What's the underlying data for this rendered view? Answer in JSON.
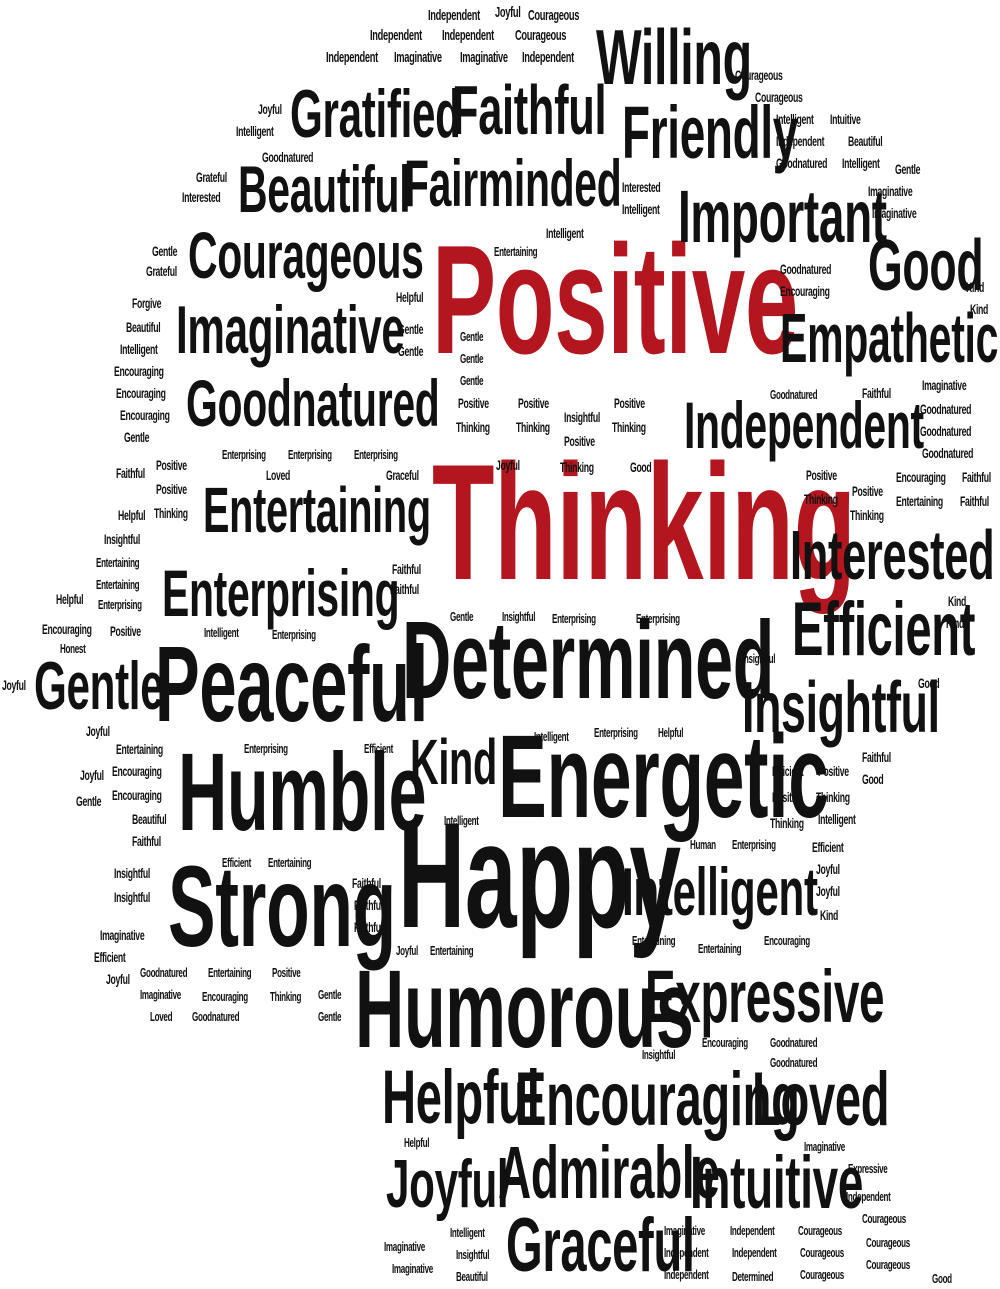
{
  "colors": {
    "background": "#ffffff",
    "text": "#111111",
    "accent": "#b3161e"
  },
  "words": [
    {
      "id": "w1",
      "text": "Positive",
      "accent": true
    },
    {
      "id": "w2",
      "text": "Thinking",
      "accent": true
    },
    {
      "id": "w3",
      "text": "Happy"
    },
    {
      "id": "w4",
      "text": "Determined"
    },
    {
      "id": "w5",
      "text": "Energetic"
    },
    {
      "id": "w6",
      "text": "Peaceful"
    },
    {
      "id": "w7",
      "text": "Humorous"
    },
    {
      "id": "w8",
      "text": "Humble"
    },
    {
      "id": "w9",
      "text": "Strong"
    },
    {
      "id": "w10",
      "text": "Willing"
    },
    {
      "id": "w11",
      "text": "Friendly"
    },
    {
      "id": "w12",
      "text": "Important"
    },
    {
      "id": "w13",
      "text": "Good"
    },
    {
      "id": "w14",
      "text": "Empathetic"
    },
    {
      "id": "w15",
      "text": "Independent"
    },
    {
      "id": "w16",
      "text": "Interested"
    },
    {
      "id": "w17",
      "text": "Efficient"
    },
    {
      "id": "w18",
      "text": "Insightful"
    },
    {
      "id": "w19",
      "text": "Intelligent"
    },
    {
      "id": "w20",
      "text": "Expressive"
    },
    {
      "id": "w21",
      "text": "Gratified"
    },
    {
      "id": "w22",
      "text": "Faithful"
    },
    {
      "id": "w23",
      "text": "Beautiful"
    },
    {
      "id": "w24",
      "text": "Fairminded"
    },
    {
      "id": "w25",
      "text": "Courageous"
    },
    {
      "id": "w26",
      "text": "Imaginative"
    },
    {
      "id": "w27",
      "text": "Goodnatured"
    },
    {
      "id": "w28",
      "text": "Entertaining"
    },
    {
      "id": "w29",
      "text": "Enterprising"
    },
    {
      "id": "w30",
      "text": "Gentle"
    },
    {
      "id": "w31",
      "text": "Kind"
    },
    {
      "id": "w32",
      "text": "Helpful"
    },
    {
      "id": "w33",
      "text": "Encouraging"
    },
    {
      "id": "w34",
      "text": "Loved"
    },
    {
      "id": "w35",
      "text": "Joyful"
    },
    {
      "id": "w36",
      "text": "Admirable"
    },
    {
      "id": "w37",
      "text": "Intuitive"
    },
    {
      "id": "w38",
      "text": "Graceful"
    },
    {
      "id": "s1",
      "text": "Independent"
    },
    {
      "id": "s2",
      "text": "Joyful"
    },
    {
      "id": "s3",
      "text": "Courageous"
    },
    {
      "id": "s4",
      "text": "Independent"
    },
    {
      "id": "s5",
      "text": "Independent"
    },
    {
      "id": "s6",
      "text": "Courageous"
    },
    {
      "id": "s7",
      "text": "Independent"
    },
    {
      "id": "s8",
      "text": "Imaginative"
    },
    {
      "id": "s9",
      "text": "Imaginative"
    },
    {
      "id": "s10",
      "text": "Independent"
    },
    {
      "id": "s11",
      "text": "Courageous"
    },
    {
      "id": "s12",
      "text": "Courageous"
    },
    {
      "id": "s13",
      "text": "Joyful"
    },
    {
      "id": "s14",
      "text": "Intelligent"
    },
    {
      "id": "s15",
      "text": "Intelligent"
    },
    {
      "id": "s16",
      "text": "Intuitive"
    },
    {
      "id": "s17",
      "text": "Independent"
    },
    {
      "id": "s18",
      "text": "Beautiful"
    },
    {
      "id": "s19",
      "text": "Goodnatured"
    },
    {
      "id": "s20",
      "text": "Intelligent"
    },
    {
      "id": "s21",
      "text": "Gentle"
    },
    {
      "id": "s22",
      "text": "Goodnatured"
    },
    {
      "id": "s23",
      "text": "Grateful"
    },
    {
      "id": "s24",
      "text": "Interested"
    },
    {
      "id": "s25",
      "text": "Interested"
    },
    {
      "id": "s26",
      "text": "Intelligent"
    },
    {
      "id": "s27",
      "text": "Imaginative"
    },
    {
      "id": "s28",
      "text": "Imaginative"
    },
    {
      "id": "s29",
      "text": "Intelligent"
    },
    {
      "id": "s30",
      "text": "Entertaining"
    },
    {
      "id": "s31",
      "text": "Gentle"
    },
    {
      "id": "s32",
      "text": "Grateful"
    },
    {
      "id": "s33",
      "text": "Goodnatured"
    },
    {
      "id": "s34",
      "text": "Encouraging"
    },
    {
      "id": "s35",
      "text": "Kind"
    },
    {
      "id": "s36",
      "text": "Kind"
    },
    {
      "id": "s37",
      "text": "Forgive"
    },
    {
      "id": "s38",
      "text": "Helpful"
    },
    {
      "id": "s39",
      "text": "Beautiful"
    },
    {
      "id": "s40",
      "text": "Gentle"
    },
    {
      "id": "s41",
      "text": "Intelligent"
    },
    {
      "id": "s42",
      "text": "Gentle"
    },
    {
      "id": "s43",
      "text": "Gentle"
    },
    {
      "id": "s44",
      "text": "Gentle"
    },
    {
      "id": "s45",
      "text": "Encouraging"
    },
    {
      "id": "s46",
      "text": "Encouraging"
    },
    {
      "id": "s47",
      "text": "Gentle"
    },
    {
      "id": "s48",
      "text": "Encouraging"
    },
    {
      "id": "s49",
      "text": "Gentle"
    },
    {
      "id": "s50",
      "text": "Positive"
    },
    {
      "id": "s51",
      "text": "Positive"
    },
    {
      "id": "s52",
      "text": "Positive"
    },
    {
      "id": "s53",
      "text": "Insightful"
    },
    {
      "id": "s54",
      "text": "Thinking"
    },
    {
      "id": "s55",
      "text": "Thinking"
    },
    {
      "id": "s56",
      "text": "Thinking"
    },
    {
      "id": "s57",
      "text": "Positive"
    },
    {
      "id": "s58",
      "text": "Entertaining"
    },
    {
      "id": "s59",
      "text": "Goodnatured"
    },
    {
      "id": "s60",
      "text": "Faithful"
    },
    {
      "id": "s61",
      "text": "Imaginative"
    },
    {
      "id": "s62",
      "text": "Goodnatured"
    },
    {
      "id": "s63",
      "text": "Goodnatured"
    },
    {
      "id": "s64",
      "text": "Goodnatured"
    },
    {
      "id": "s65",
      "text": "Enterprising"
    },
    {
      "id": "s66",
      "text": "Enterprising"
    },
    {
      "id": "s67",
      "text": "Enterprising"
    },
    {
      "id": "s68",
      "text": "Faithful"
    },
    {
      "id": "s69",
      "text": "Positive"
    },
    {
      "id": "s70",
      "text": "Loved"
    },
    {
      "id": "s71",
      "text": "Graceful"
    },
    {
      "id": "s72",
      "text": "Joyful"
    },
    {
      "id": "s73",
      "text": "Thinking"
    },
    {
      "id": "s74",
      "text": "Good"
    },
    {
      "id": "s75",
      "text": "Helpful"
    },
    {
      "id": "s76",
      "text": "Positive"
    },
    {
      "id": "s77",
      "text": "Positive"
    },
    {
      "id": "s78",
      "text": "Encouraging"
    },
    {
      "id": "s79",
      "text": "Faithful"
    },
    {
      "id": "s80",
      "text": "Thinking"
    },
    {
      "id": "s81",
      "text": "Positive"
    },
    {
      "id": "s82",
      "text": "Entertaining"
    },
    {
      "id": "s83",
      "text": "Faithful"
    },
    {
      "id": "s84",
      "text": "Insightful"
    },
    {
      "id": "s85",
      "text": "Thinking"
    },
    {
      "id": "s86",
      "text": "Thinking"
    },
    {
      "id": "s87",
      "text": "Entertaining"
    },
    {
      "id": "s88",
      "text": "Entertaining"
    },
    {
      "id": "s89",
      "text": "Faithful"
    },
    {
      "id": "s90",
      "text": "Enterprising"
    },
    {
      "id": "s91",
      "text": "Faithful"
    },
    {
      "id": "s92",
      "text": "Helpful"
    },
    {
      "id": "s93",
      "text": "Gentle"
    },
    {
      "id": "s94",
      "text": "Insightful"
    },
    {
      "id": "s95",
      "text": "Enterprising"
    },
    {
      "id": "s96",
      "text": "Enterprising"
    },
    {
      "id": "s97",
      "text": "Kind"
    },
    {
      "id": "s98",
      "text": "Encouraging"
    },
    {
      "id": "s99",
      "text": "Positive"
    },
    {
      "id": "s100",
      "text": "Intelligent"
    },
    {
      "id": "s101",
      "text": "Enterprising"
    },
    {
      "id": "s102",
      "text": "Kind"
    },
    {
      "id": "s103",
      "text": "Honest"
    },
    {
      "id": "s104",
      "text": "Joyful"
    },
    {
      "id": "s105",
      "text": "Insightful"
    },
    {
      "id": "s106",
      "text": "Good"
    },
    {
      "id": "s107",
      "text": "Joyful"
    },
    {
      "id": "s108",
      "text": "Intelligent"
    },
    {
      "id": "s109",
      "text": "Enterprising"
    },
    {
      "id": "s110",
      "text": "Helpful"
    },
    {
      "id": "s111",
      "text": "Entertaining"
    },
    {
      "id": "s112",
      "text": "Enterprising"
    },
    {
      "id": "s113",
      "text": "Efficient"
    },
    {
      "id": "s114",
      "text": "Faithful"
    },
    {
      "id": "s115",
      "text": "Joyful"
    },
    {
      "id": "s116",
      "text": "Encouraging"
    },
    {
      "id": "s117",
      "text": "Efficient"
    },
    {
      "id": "s118",
      "text": "Positive"
    },
    {
      "id": "s119",
      "text": "Good"
    },
    {
      "id": "s120",
      "text": "Gentle"
    },
    {
      "id": "s121",
      "text": "Encouraging"
    },
    {
      "id": "s122",
      "text": "Positive"
    },
    {
      "id": "s123",
      "text": "Thinking"
    },
    {
      "id": "s124",
      "text": "Beautiful"
    },
    {
      "id": "s125",
      "text": "Intelligent"
    },
    {
      "id": "s126",
      "text": "Thinking"
    },
    {
      "id": "s127",
      "text": "Intelligent"
    },
    {
      "id": "s128",
      "text": "Faithful"
    },
    {
      "id": "s129",
      "text": "Human"
    },
    {
      "id": "s130",
      "text": "Enterprising"
    },
    {
      "id": "s131",
      "text": "Efficient"
    },
    {
      "id": "s132",
      "text": "Efficient"
    },
    {
      "id": "s133",
      "text": "Entertaining"
    },
    {
      "id": "s134",
      "text": "Joyful"
    },
    {
      "id": "s135",
      "text": "Insightful"
    },
    {
      "id": "s136",
      "text": "Faithful"
    },
    {
      "id": "s137",
      "text": "Joyful"
    },
    {
      "id": "s138",
      "text": "Insightful"
    },
    {
      "id": "s139",
      "text": "Faithful"
    },
    {
      "id": "s140",
      "text": "Kind"
    },
    {
      "id": "s141",
      "text": "Faithful"
    },
    {
      "id": "s142",
      "text": "Imaginative"
    },
    {
      "id": "s143",
      "text": "Entertaining"
    },
    {
      "id": "s144",
      "text": "Entertaining"
    },
    {
      "id": "s145",
      "text": "Encouraging"
    },
    {
      "id": "s146",
      "text": "Efficient"
    },
    {
      "id": "s147",
      "text": "Joyful"
    },
    {
      "id": "s148",
      "text": "Entertaining"
    },
    {
      "id": "s149",
      "text": "Joyful"
    },
    {
      "id": "s150",
      "text": "Goodnatured"
    },
    {
      "id": "s151",
      "text": "Entertaining"
    },
    {
      "id": "s152",
      "text": "Positive"
    },
    {
      "id": "s153",
      "text": "Imaginative"
    },
    {
      "id": "s154",
      "text": "Encouraging"
    },
    {
      "id": "s155",
      "text": "Thinking"
    },
    {
      "id": "s156",
      "text": "Gentle"
    },
    {
      "id": "s157",
      "text": "Loved"
    },
    {
      "id": "s158",
      "text": "Goodnatured"
    },
    {
      "id": "s159",
      "text": "Gentle"
    },
    {
      "id": "s160",
      "text": "Insightful"
    },
    {
      "id": "s161",
      "text": "Encouraging"
    },
    {
      "id": "s162",
      "text": "Goodnatured"
    },
    {
      "id": "s163",
      "text": "Goodnatured"
    },
    {
      "id": "s164",
      "text": "Helpful"
    },
    {
      "id": "s165",
      "text": "Imaginative"
    },
    {
      "id": "s166",
      "text": "Expressive"
    },
    {
      "id": "s167",
      "text": "Independent"
    },
    {
      "id": "s168",
      "text": "Courageous"
    },
    {
      "id": "s169",
      "text": "Intelligent"
    },
    {
      "id": "s170",
      "text": "Imaginative"
    },
    {
      "id": "s171",
      "text": "Independent"
    },
    {
      "id": "s172",
      "text": "Courageous"
    },
    {
      "id": "s173",
      "text": "Courageous"
    },
    {
      "id": "s174",
      "text": "Imaginative"
    },
    {
      "id": "s175",
      "text": "Insightful"
    },
    {
      "id": "s176",
      "text": "Independent"
    },
    {
      "id": "s177",
      "text": "Independent"
    },
    {
      "id": "s178",
      "text": "Courageous"
    },
    {
      "id": "s179",
      "text": "Courageous"
    },
    {
      "id": "s180",
      "text": "Imaginative"
    },
    {
      "id": "s181",
      "text": "Beautiful"
    },
    {
      "id": "s182",
      "text": "Independent"
    },
    {
      "id": "s183",
      "text": "Determined"
    },
    {
      "id": "s184",
      "text": "Courageous"
    },
    {
      "id": "s185",
      "text": "Good"
    }
  ]
}
